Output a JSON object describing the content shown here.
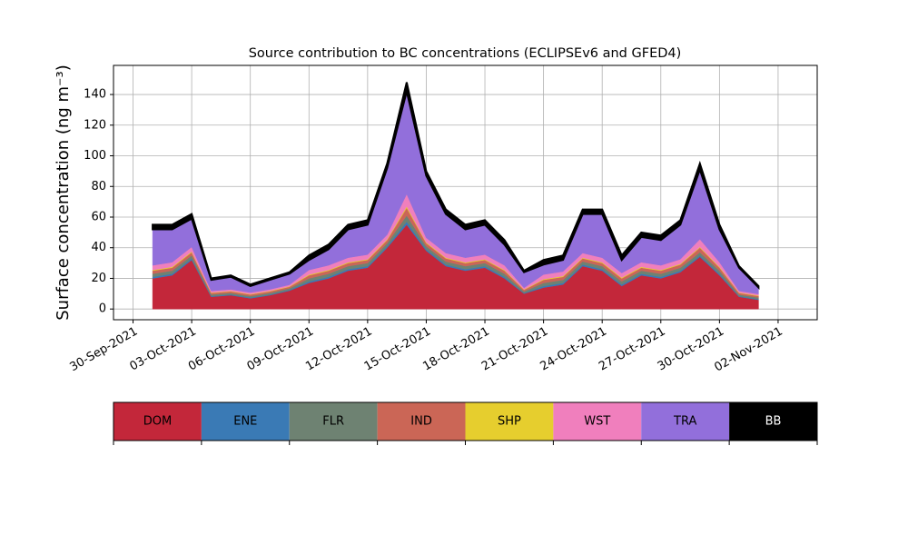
{
  "chart_data": {
    "type": "stacked_area",
    "title": "Source contribution to BC concentrations (ECLIPSEv6 and GFED4)",
    "y_label": "Surface concentration (ng m⁻³)",
    "x": [
      "2021-10-01",
      "2021-10-02",
      "2021-10-03",
      "2021-10-04",
      "2021-10-05",
      "2021-10-06",
      "2021-10-07",
      "2021-10-08",
      "2021-10-09",
      "2021-10-10",
      "2021-10-11",
      "2021-10-12",
      "2021-10-13",
      "2021-10-14",
      "2021-10-15",
      "2021-10-16",
      "2021-10-17",
      "2021-10-18",
      "2021-10-19",
      "2021-10-20",
      "2021-10-21",
      "2021-10-22",
      "2021-10-23",
      "2021-10-24",
      "2021-10-25",
      "2021-10-26",
      "2021-10-27",
      "2021-10-28",
      "2021-10-29",
      "2021-10-30",
      "2021-10-31",
      "2021-11-01"
    ],
    "series": [
      {
        "name": "DOM",
        "color": "#c3273a",
        "values": [
          20,
          22,
          32,
          8,
          9,
          7,
          9,
          12,
          17,
          20,
          25,
          27,
          40,
          55,
          38,
          28,
          25,
          27,
          20,
          10,
          14,
          16,
          28,
          25,
          15,
          22,
          20,
          24,
          34,
          22,
          8,
          6
        ]
      },
      {
        "name": "ENE",
        "color": "#3a7ab5",
        "values": [
          1,
          1,
          1,
          0.5,
          0.5,
          0.5,
          0.5,
          0.5,
          1,
          1,
          1,
          1,
          1,
          2,
          1,
          1,
          1,
          1,
          1,
          0.5,
          1,
          1,
          1,
          1,
          1,
          1,
          1,
          1,
          1,
          1,
          0.5,
          0.5
        ]
      },
      {
        "name": "FLR",
        "color": "#6e8272",
        "values": [
          2,
          2,
          2,
          1,
          1,
          1,
          1,
          1,
          2,
          2,
          2,
          2,
          2,
          4,
          2,
          2,
          2,
          2,
          2,
          1,
          2,
          2,
          2,
          2,
          2,
          2,
          2,
          2,
          2,
          2,
          1,
          1
        ]
      },
      {
        "name": "IND",
        "color": "#cb6656",
        "values": [
          2,
          2,
          2,
          1,
          1,
          1,
          1,
          1,
          2,
          2,
          2,
          2,
          2,
          5,
          2,
          2,
          2,
          2,
          2,
          1,
          2,
          2,
          2,
          2,
          2,
          2,
          2,
          2,
          3,
          2,
          1,
          1
        ]
      },
      {
        "name": "SHP",
        "color": "#e6ce2e",
        "values": [
          0.5,
          0.5,
          0.5,
          0.3,
          0.3,
          0.3,
          0.3,
          0.3,
          0.5,
          0.5,
          0.5,
          0.5,
          0.5,
          1,
          0.5,
          0.5,
          0.5,
          0.5,
          0.5,
          0.3,
          0.5,
          0.5,
          0.5,
          0.5,
          0.5,
          0.5,
          0.5,
          0.5,
          0.5,
          0.5,
          0.3,
          0.3
        ]
      },
      {
        "name": "WST",
        "color": "#f07fbd",
        "values": [
          3,
          3,
          3,
          1,
          1,
          1,
          1,
          1,
          3,
          3,
          3,
          3,
          3,
          8,
          3,
          3,
          3,
          3,
          3,
          1,
          3,
          3,
          3,
          3,
          3,
          3,
          3,
          3,
          5,
          3,
          1,
          1
        ]
      },
      {
        "name": "TRA",
        "color": "#926fdb",
        "values": [
          23.5,
          21.5,
          18.5,
          7.2,
          8.2,
          4.2,
          6.2,
          7.2,
          6.5,
          10.5,
          18.5,
          19.5,
          43.5,
          67,
          40.5,
          25.5,
          18.5,
          19.5,
          13.5,
          10.2,
          6.5,
          7.5,
          25.5,
          28.5,
          8.5,
          16.5,
          16.5,
          22.5,
          45.5,
          21.5,
          15.2,
          4.2
        ]
      },
      {
        "name": "BB",
        "color": "#000000",
        "values": [
          3,
          3,
          3,
          1,
          1,
          1,
          1,
          1,
          3,
          3,
          3,
          3,
          3,
          6,
          3,
          3,
          3,
          3,
          3,
          1,
          3,
          3,
          3,
          3,
          3,
          3,
          3,
          3,
          4,
          3,
          1,
          1
        ]
      }
    ],
    "xlim": [
      "2021-09-29",
      "2021-11-04"
    ],
    "xticks": [
      {
        "value": "2021-09-30",
        "label": "30-Sep-2021"
      },
      {
        "value": "2021-10-03",
        "label": "03-Oct-2021"
      },
      {
        "value": "2021-10-06",
        "label": "06-Oct-2021"
      },
      {
        "value": "2021-10-09",
        "label": "09-Oct-2021"
      },
      {
        "value": "2021-10-12",
        "label": "12-Oct-2021"
      },
      {
        "value": "2021-10-15",
        "label": "15-Oct-2021"
      },
      {
        "value": "2021-10-18",
        "label": "18-Oct-2021"
      },
      {
        "value": "2021-10-21",
        "label": "21-Oct-2021"
      },
      {
        "value": "2021-10-24",
        "label": "24-Oct-2021"
      },
      {
        "value": "2021-10-27",
        "label": "27-Oct-2021"
      },
      {
        "value": "2021-10-30",
        "label": "30-Oct-2021"
      },
      {
        "value": "2021-11-02",
        "label": "02-Nov-2021"
      }
    ],
    "ylim": [
      -7,
      159
    ],
    "yticks": [
      0,
      20,
      40,
      60,
      80,
      100,
      120,
      140
    ],
    "grid": true
  }
}
